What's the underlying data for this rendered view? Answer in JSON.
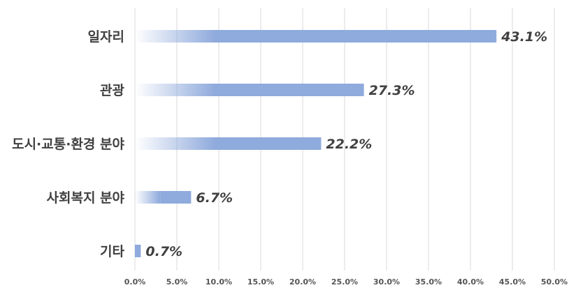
{
  "chart_data": {
    "type": "bar",
    "orientation": "horizontal",
    "categories": [
      "일자리",
      "관광",
      "도시·교통·환경 분야",
      "사회복지 분야",
      "기타"
    ],
    "values": [
      43.1,
      27.3,
      22.2,
      6.7,
      0.7
    ],
    "value_labels": [
      "43.1%",
      "27.3%",
      "22.2%",
      "6.7%",
      "0.7%"
    ],
    "x_ticks": [
      "0.0%",
      "5.0%",
      "10.0%",
      "15.0%",
      "20.0%",
      "25.0%",
      "30.0%",
      "35.0%",
      "40.0%",
      "45.0%",
      "50.0%"
    ],
    "xlim": [
      0,
      50
    ],
    "grid": true,
    "legend": "none",
    "bar_color": "#8faadc",
    "title": "",
    "xlabel": "",
    "ylabel": ""
  }
}
